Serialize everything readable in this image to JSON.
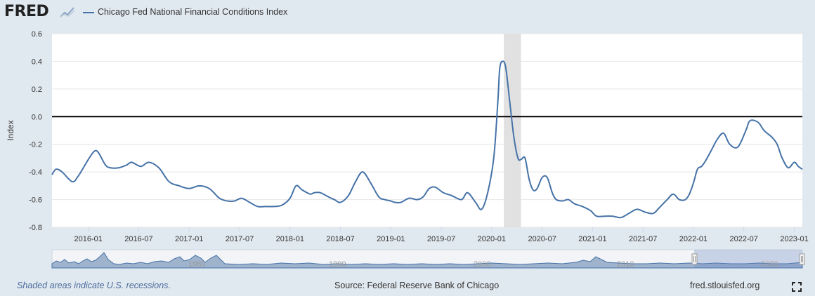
{
  "brand": {
    "logo_text": "FRED"
  },
  "chart_data": {
    "type": "line",
    "title": "Chicago Fed National Financial Conditions Index",
    "ylabel": "Index",
    "xlabel": "",
    "ylim": [
      -0.8,
      0.6
    ],
    "yticks": [
      "0.6",
      "0.4",
      "0.2",
      "0.0",
      "-0.2",
      "-0.4",
      "-0.6",
      "-0.8"
    ],
    "ytick_values": [
      0.6,
      0.4,
      0.2,
      0.0,
      -0.2,
      -0.4,
      -0.6,
      -0.8
    ],
    "xticks": [
      "2016-01",
      "2016-07",
      "2017-01",
      "2017-07",
      "2018-01",
      "2018-07",
      "2019-01",
      "2019-07",
      "2020-01",
      "2020-07",
      "2021-01",
      "2021-07",
      "2022-01",
      "2022-07",
      "2023-01"
    ],
    "xtick_values": [
      2016.0,
      2016.5,
      2017.0,
      2017.5,
      2018.0,
      2018.5,
      2019.0,
      2019.5,
      2020.0,
      2020.5,
      2021.0,
      2021.5,
      2022.0,
      2022.5,
      2023.0
    ],
    "xlim": [
      2015.64,
      2023.08
    ],
    "recession": {
      "start": 2020.12,
      "end": 2020.29
    },
    "zero_line": 0.0,
    "series": [
      {
        "name": "Chicago Fed National Financial Conditions Index",
        "color": "#4572a7",
        "x": [
          2015.64,
          2015.68,
          2015.74,
          2015.84,
          2015.9,
          2016.0,
          2016.06,
          2016.1,
          2016.17,
          2016.22,
          2016.3,
          2016.38,
          2016.43,
          2016.52,
          2016.6,
          2016.7,
          2016.8,
          2016.9,
          2017.0,
          2017.1,
          2017.2,
          2017.3,
          2017.38,
          2017.45,
          2017.52,
          2017.6,
          2017.68,
          2017.76,
          2017.84,
          2017.92,
          2018.0,
          2018.06,
          2018.12,
          2018.2,
          2018.24,
          2018.3,
          2018.38,
          2018.44,
          2018.5,
          2018.58,
          2018.65,
          2018.72,
          2018.8,
          2018.88,
          2018.94,
          2019.0,
          2019.04,
          2019.1,
          2019.18,
          2019.26,
          2019.32,
          2019.38,
          2019.44,
          2019.52,
          2019.6,
          2019.7,
          2019.76,
          2019.84,
          2019.9,
          2019.96,
          2020.02,
          2020.06,
          2020.08,
          2020.11,
          2020.14,
          2020.18,
          2020.22,
          2020.26,
          2020.29,
          2020.33,
          2020.37,
          2020.41,
          2020.45,
          2020.5,
          2020.55,
          2020.6,
          2020.64,
          2020.7,
          2020.76,
          2020.82,
          2020.9,
          2020.98,
          2021.04,
          2021.12,
          2021.2,
          2021.28,
          2021.36,
          2021.44,
          2021.52,
          2021.6,
          2021.66,
          2021.74,
          2021.8,
          2021.86,
          2021.92,
          2021.96,
          2022.0,
          2022.04,
          2022.08,
          2022.12,
          2022.18,
          2022.24,
          2022.3,
          2022.36,
          2022.44,
          2022.52,
          2022.56,
          2022.64,
          2022.7,
          2022.78,
          2022.83,
          2022.88,
          2022.94,
          2023.0,
          2023.04,
          2023.08
        ],
        "y": [
          -0.42,
          -0.38,
          -0.4,
          -0.47,
          -0.43,
          -0.31,
          -0.25,
          -0.26,
          -0.35,
          -0.37,
          -0.37,
          -0.35,
          -0.33,
          -0.36,
          -0.33,
          -0.37,
          -0.47,
          -0.5,
          -0.52,
          -0.5,
          -0.52,
          -0.59,
          -0.61,
          -0.61,
          -0.59,
          -0.62,
          -0.65,
          -0.65,
          -0.65,
          -0.64,
          -0.59,
          -0.5,
          -0.53,
          -0.56,
          -0.55,
          -0.55,
          -0.58,
          -0.6,
          -0.62,
          -0.57,
          -0.47,
          -0.4,
          -0.48,
          -0.58,
          -0.6,
          -0.61,
          -0.62,
          -0.62,
          -0.59,
          -0.6,
          -0.58,
          -0.52,
          -0.51,
          -0.55,
          -0.57,
          -0.6,
          -0.55,
          -0.62,
          -0.67,
          -0.55,
          -0.3,
          0.1,
          0.35,
          0.4,
          0.35,
          0.1,
          -0.15,
          -0.3,
          -0.31,
          -0.3,
          -0.45,
          -0.53,
          -0.52,
          -0.44,
          -0.44,
          -0.55,
          -0.6,
          -0.61,
          -0.6,
          -0.63,
          -0.65,
          -0.68,
          -0.72,
          -0.72,
          -0.72,
          -0.73,
          -0.7,
          -0.67,
          -0.69,
          -0.7,
          -0.66,
          -0.6,
          -0.56,
          -0.6,
          -0.6,
          -0.56,
          -0.48,
          -0.38,
          -0.36,
          -0.32,
          -0.24,
          -0.16,
          -0.12,
          -0.2,
          -0.22,
          -0.1,
          -0.03,
          -0.04,
          -0.1,
          -0.15,
          -0.2,
          -0.3,
          -0.37,
          -0.33,
          -0.36,
          -0.38
        ]
      }
    ]
  },
  "navigator": {
    "labels": [
      "1980",
      "1990",
      "2000",
      "2010",
      "2020"
    ]
  },
  "footer": {
    "recession_note": "Shaded areas indicate U.S. recessions.",
    "source": "Source: Federal Reserve Bank of Chicago",
    "site": "fred.stlouisfed.org"
  },
  "colors": {
    "line": "#4572a7",
    "recession": "#e1e1e1",
    "background": "#e1e9f0",
    "plot_bg": "#ffffff",
    "grid": "#e6e6e6"
  }
}
